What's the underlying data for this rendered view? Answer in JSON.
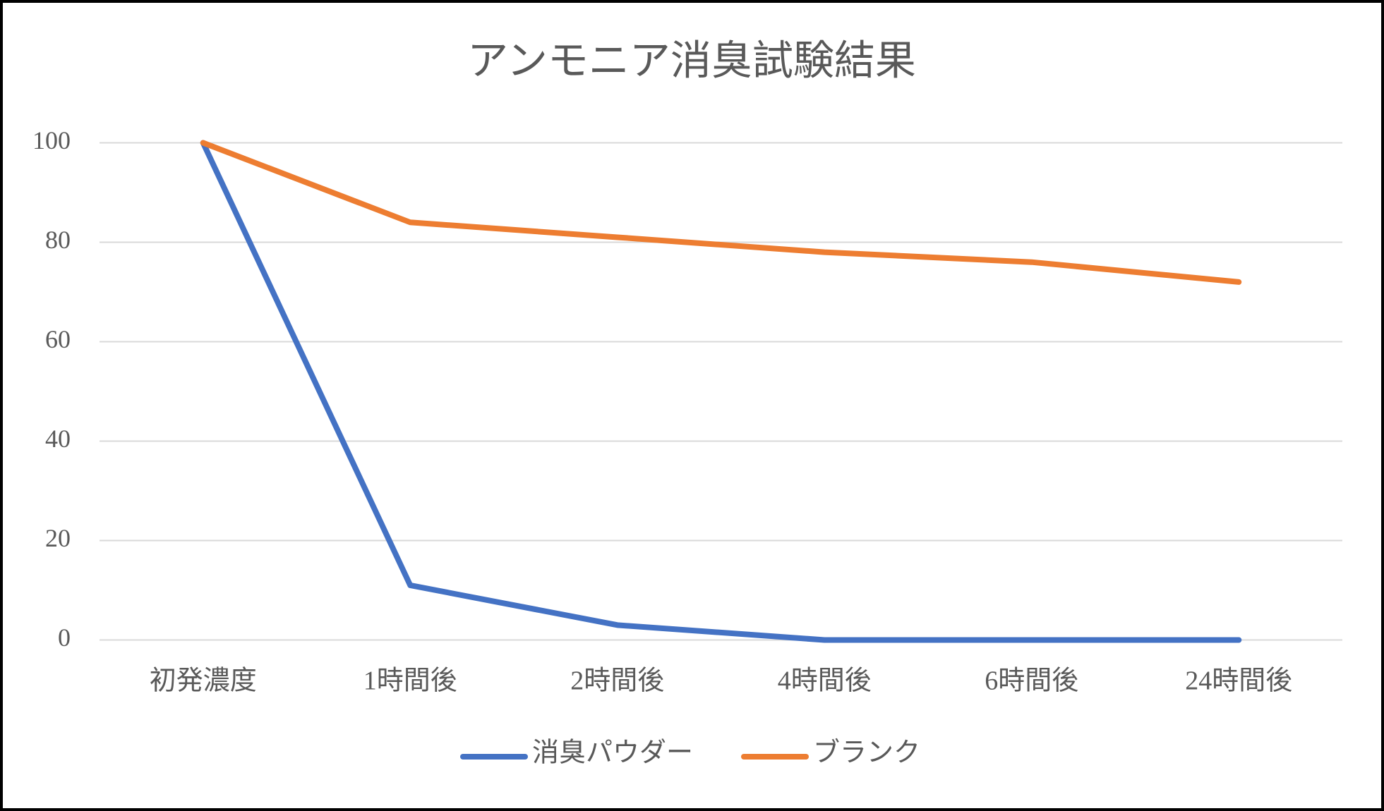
{
  "chart_data": {
    "type": "line",
    "title": "アンモニア消臭試験結果",
    "categories": [
      "初発濃度",
      "1時間後",
      "2時間後",
      "4時間後",
      "6時間後",
      "24時間後"
    ],
    "series": [
      {
        "name": "消臭パウダー",
        "color": "#4472c4",
        "values": [
          100,
          11,
          3,
          0,
          0,
          0
        ]
      },
      {
        "name": "ブランク",
        "color": "#ed7d31",
        "values": [
          100,
          84,
          81,
          78,
          76,
          72
        ]
      }
    ],
    "ylim": [
      0,
      100
    ],
    "yticks": [
      0,
      20,
      40,
      60,
      80,
      100
    ],
    "grid": true,
    "legend": "bottom"
  }
}
